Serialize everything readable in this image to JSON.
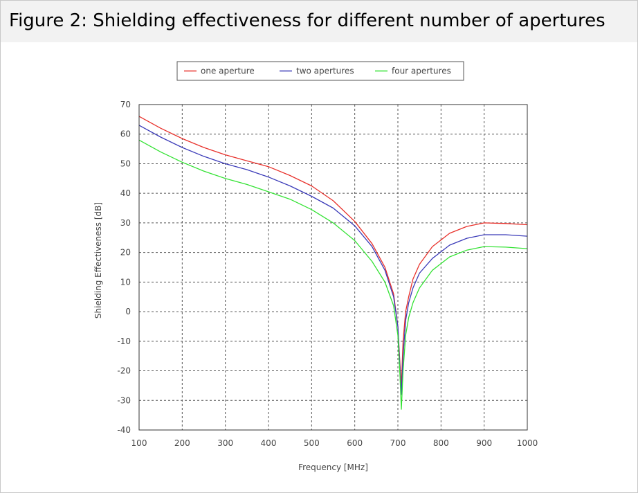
{
  "caption": "Figure 2: Shielding effectiveness for different number of apertures",
  "chart_data": {
    "type": "line",
    "xlabel": "Frequency [MHz]",
    "ylabel": "Shielding Effectiveness [dB]",
    "xlim": [
      100,
      1000
    ],
    "ylim": [
      -40,
      70
    ],
    "xticks": [
      100,
      200,
      300,
      400,
      500,
      600,
      700,
      800,
      900,
      1000
    ],
    "yticks": [
      70,
      60,
      50,
      40,
      30,
      20,
      10,
      0,
      -10,
      -20,
      -30,
      -40
    ],
    "grid": true,
    "legend_position": "top",
    "series": [
      {
        "name": "one aperture",
        "color": "#e8302a",
        "points": [
          [
            100,
            66
          ],
          [
            150,
            62
          ],
          [
            200,
            58.5
          ],
          [
            250,
            55.5
          ],
          [
            300,
            53
          ],
          [
            350,
            51
          ],
          [
            400,
            49
          ],
          [
            450,
            46
          ],
          [
            500,
            42.5
          ],
          [
            550,
            37.5
          ],
          [
            600,
            30.5
          ],
          [
            640,
            23
          ],
          [
            670,
            15
          ],
          [
            690,
            6
          ],
          [
            700,
            -5
          ],
          [
            705,
            -18
          ],
          [
            708,
            -25
          ],
          [
            712,
            -10
          ],
          [
            718,
            0
          ],
          [
            725,
            5
          ],
          [
            735,
            11
          ],
          [
            750,
            16
          ],
          [
            780,
            22
          ],
          [
            820,
            26.5
          ],
          [
            860,
            28.8
          ],
          [
            900,
            30
          ],
          [
            950,
            29.8
          ],
          [
            1000,
            29.4
          ]
        ]
      },
      {
        "name": "two apertures",
        "color": "#3a3ab8",
        "points": [
          [
            100,
            63
          ],
          [
            150,
            59
          ],
          [
            200,
            55.5
          ],
          [
            250,
            52.5
          ],
          [
            300,
            50
          ],
          [
            350,
            48
          ],
          [
            400,
            45.5
          ],
          [
            450,
            42.5
          ],
          [
            500,
            39
          ],
          [
            550,
            35
          ],
          [
            600,
            29
          ],
          [
            640,
            22
          ],
          [
            670,
            14
          ],
          [
            690,
            5
          ],
          [
            700,
            -5
          ],
          [
            705,
            -20
          ],
          [
            708,
            -28
          ],
          [
            712,
            -15
          ],
          [
            718,
            -3
          ],
          [
            725,
            3
          ],
          [
            735,
            8
          ],
          [
            750,
            13
          ],
          [
            780,
            18
          ],
          [
            820,
            22.5
          ],
          [
            860,
            24.8
          ],
          [
            900,
            26
          ],
          [
            950,
            26
          ],
          [
            1000,
            25.5
          ]
        ]
      },
      {
        "name": "four apertures",
        "color": "#33e233",
        "points": [
          [
            100,
            58
          ],
          [
            150,
            54
          ],
          [
            200,
            50.5
          ],
          [
            250,
            47.5
          ],
          [
            300,
            45
          ],
          [
            350,
            43
          ],
          [
            400,
            40.5
          ],
          [
            450,
            38
          ],
          [
            500,
            34.5
          ],
          [
            550,
            30
          ],
          [
            600,
            24
          ],
          [
            640,
            17
          ],
          [
            670,
            10
          ],
          [
            690,
            2
          ],
          [
            700,
            -8
          ],
          [
            705,
            -22
          ],
          [
            708,
            -33
          ],
          [
            712,
            -20
          ],
          [
            718,
            -8
          ],
          [
            725,
            -2
          ],
          [
            735,
            3
          ],
          [
            750,
            8
          ],
          [
            780,
            14
          ],
          [
            820,
            18.5
          ],
          [
            860,
            20.8
          ],
          [
            900,
            22
          ],
          [
            950,
            21.8
          ],
          [
            1000,
            21.3
          ]
        ]
      }
    ]
  }
}
